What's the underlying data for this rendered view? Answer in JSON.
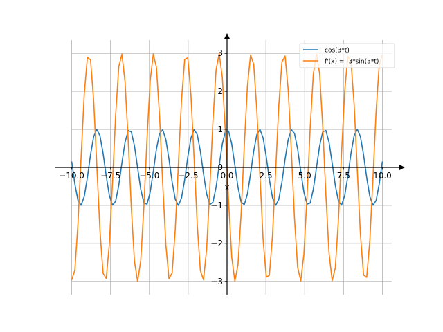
{
  "chart_data": {
    "type": "line",
    "xlabel": "x",
    "ylabel": "",
    "xlim": [
      -10,
      10
    ],
    "ylim": [
      -3,
      3
    ],
    "grid": true,
    "legend_position": "top-right",
    "x_ticks": [
      -10.0,
      -7.5,
      -5.0,
      -2.5,
      0.0,
      2.5,
      5.0,
      7.5,
      10.0
    ],
    "x_tick_labels": [
      "−10.0",
      "−7.5",
      "−5.0",
      "−2.5",
      "0.0",
      "2.5",
      "5.0",
      "7.5",
      "10.0"
    ],
    "y_ticks": [
      -3,
      -2,
      -1,
      0,
      1,
      2,
      3
    ],
    "y_tick_labels": [
      "−3",
      "−2",
      "−1",
      "0",
      "1",
      "2",
      "3"
    ],
    "sampling": {
      "start": -10,
      "end": 10,
      "points": 100
    },
    "series": [
      {
        "name": "cos(3*t)",
        "expression": "cos(3*x)",
        "color": "#1f77b4"
      },
      {
        "name": "f'(x) = -3*sin(3*t)",
        "expression": "-3*sin(3*x)",
        "color": "#ff7f0e"
      }
    ]
  }
}
